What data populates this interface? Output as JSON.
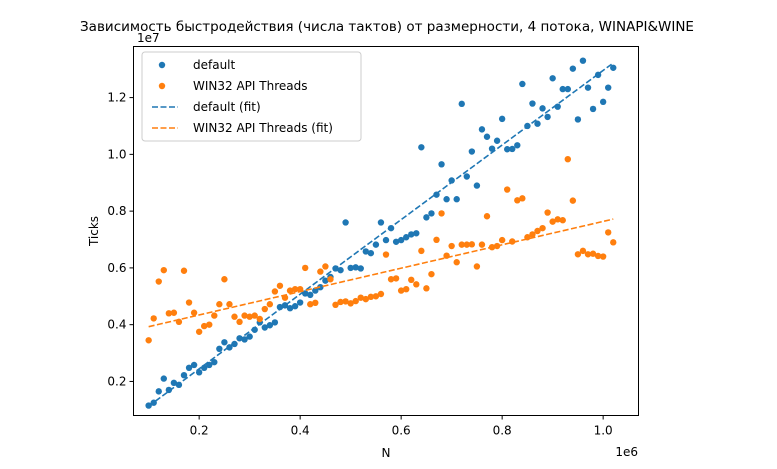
{
  "chart_data": {
    "type": "scatter",
    "title": "Зависимость быстродействия (числа тактов) от размерности, 4 потока, WINAPI&WINE",
    "xlabel": "N",
    "ylabel": "Ticks",
    "x_offset_label": "1e6",
    "y_offset_label": "1e7",
    "xlim": [
      70000,
      1070000
    ],
    "ylim": [
      8000000,
      138000000
    ],
    "x_ticks": [
      {
        "value": 200000,
        "label": "0.2"
      },
      {
        "value": 400000,
        "label": "0.4"
      },
      {
        "value": 600000,
        "label": "0.6"
      },
      {
        "value": 800000,
        "label": "0.8"
      },
      {
        "value": 1000000,
        "label": "1.0"
      }
    ],
    "y_ticks": [
      {
        "value": 20000000,
        "label": "0.2"
      },
      {
        "value": 40000000,
        "label": "0.4"
      },
      {
        "value": 60000000,
        "label": "0.6"
      },
      {
        "value": 80000000,
        "label": "0.8"
      },
      {
        "value": 100000000,
        "label": "1.0"
      },
      {
        "value": 120000000,
        "label": "1.2"
      }
    ],
    "grid": false,
    "legend_position": "top-left",
    "series": [
      {
        "name": "default",
        "kind": "scatter",
        "color": "#1f77b4",
        "points": [
          [
            100000,
            11500000
          ],
          [
            110000,
            12500000
          ],
          [
            120000,
            16500000
          ],
          [
            130000,
            21000000
          ],
          [
            140000,
            17000000
          ],
          [
            150000,
            19500000
          ],
          [
            160000,
            18800000
          ],
          [
            170000,
            22200000
          ],
          [
            180000,
            24800000
          ],
          [
            190000,
            25800000
          ],
          [
            200000,
            23200000
          ],
          [
            210000,
            24800000
          ],
          [
            220000,
            25800000
          ],
          [
            230000,
            26800000
          ],
          [
            240000,
            31500000
          ],
          [
            250000,
            33800000
          ],
          [
            260000,
            32000000
          ],
          [
            270000,
            33200000
          ],
          [
            280000,
            35200000
          ],
          [
            290000,
            34800000
          ],
          [
            300000,
            35800000
          ],
          [
            310000,
            38200000
          ],
          [
            320000,
            40800000
          ],
          [
            330000,
            39000000
          ],
          [
            340000,
            39800000
          ],
          [
            350000,
            40800000
          ],
          [
            360000,
            46200000
          ],
          [
            370000,
            46800000
          ],
          [
            380000,
            45800000
          ],
          [
            390000,
            46500000
          ],
          [
            400000,
            47800000
          ],
          [
            410000,
            51000000
          ],
          [
            420000,
            50500000
          ],
          [
            430000,
            52000000
          ],
          [
            440000,
            53200000
          ],
          [
            450000,
            55500000
          ],
          [
            460000,
            56800000
          ],
          [
            470000,
            59800000
          ],
          [
            480000,
            59200000
          ],
          [
            490000,
            76000000
          ],
          [
            500000,
            60000000
          ],
          [
            510000,
            60200000
          ],
          [
            520000,
            59800000
          ],
          [
            530000,
            65800000
          ],
          [
            540000,
            65200000
          ],
          [
            550000,
            68200000
          ],
          [
            560000,
            76000000
          ],
          [
            570000,
            69800000
          ],
          [
            580000,
            74000000
          ],
          [
            590000,
            69200000
          ],
          [
            600000,
            69800000
          ],
          [
            610000,
            70800000
          ],
          [
            620000,
            71800000
          ],
          [
            630000,
            72200000
          ],
          [
            640000,
            102500000
          ],
          [
            650000,
            77800000
          ],
          [
            660000,
            79200000
          ],
          [
            670000,
            85800000
          ],
          [
            680000,
            96500000
          ],
          [
            690000,
            84200000
          ],
          [
            700000,
            90800000
          ],
          [
            710000,
            84200000
          ],
          [
            720000,
            117800000
          ],
          [
            730000,
            92200000
          ],
          [
            740000,
            101000000
          ],
          [
            750000,
            89000000
          ],
          [
            760000,
            108800000
          ],
          [
            770000,
            106200000
          ],
          [
            780000,
            102000000
          ],
          [
            790000,
            104800000
          ],
          [
            800000,
            112500000
          ],
          [
            810000,
            101800000
          ],
          [
            820000,
            101900000
          ],
          [
            830000,
            103200000
          ],
          [
            840000,
            124800000
          ],
          [
            850000,
            110000000
          ],
          [
            860000,
            117900000
          ],
          [
            870000,
            110800000
          ],
          [
            880000,
            116200000
          ],
          [
            890000,
            113200000
          ],
          [
            900000,
            126800000
          ],
          [
            910000,
            116800000
          ],
          [
            920000,
            123000000
          ],
          [
            930000,
            123000000
          ],
          [
            940000,
            130200000
          ],
          [
            950000,
            112300000
          ],
          [
            960000,
            133000000
          ],
          [
            970000,
            123500000
          ],
          [
            980000,
            116000000
          ],
          [
            990000,
            128000000
          ],
          [
            1000000,
            118500000
          ],
          [
            1010000,
            123500000
          ],
          [
            1020000,
            130500000
          ]
        ]
      },
      {
        "name": "WIN32 API Threads",
        "kind": "scatter",
        "color": "#ff7f0e",
        "points": [
          [
            100000,
            34500000
          ],
          [
            110000,
            42200000
          ],
          [
            120000,
            55200000
          ],
          [
            130000,
            59200000
          ],
          [
            140000,
            44000000
          ],
          [
            150000,
            44200000
          ],
          [
            160000,
            41000000
          ],
          [
            170000,
            59000000
          ],
          [
            180000,
            47800000
          ],
          [
            190000,
            44200000
          ],
          [
            200000,
            37500000
          ],
          [
            210000,
            39500000
          ],
          [
            220000,
            40000000
          ],
          [
            230000,
            43200000
          ],
          [
            240000,
            47200000
          ],
          [
            250000,
            56000000
          ],
          [
            260000,
            47200000
          ],
          [
            270000,
            42800000
          ],
          [
            280000,
            41000000
          ],
          [
            290000,
            43200000
          ],
          [
            300000,
            42800000
          ],
          [
            310000,
            43200000
          ],
          [
            320000,
            42000000
          ],
          [
            330000,
            45500000
          ],
          [
            340000,
            47200000
          ],
          [
            350000,
            51700000
          ],
          [
            360000,
            53700000
          ],
          [
            370000,
            49500000
          ],
          [
            380000,
            52000000
          ],
          [
            390000,
            52500000
          ],
          [
            400000,
            52500000
          ],
          [
            410000,
            60000000
          ],
          [
            420000,
            47200000
          ],
          [
            430000,
            47700000
          ],
          [
            440000,
            58700000
          ],
          [
            450000,
            60500000
          ],
          [
            460000,
            56000000
          ],
          [
            470000,
            47000000
          ],
          [
            480000,
            48000000
          ],
          [
            490000,
            48200000
          ],
          [
            500000,
            47500000
          ],
          [
            510000,
            48300000
          ],
          [
            520000,
            49500000
          ],
          [
            530000,
            49000000
          ],
          [
            540000,
            49800000
          ],
          [
            550000,
            50000000
          ],
          [
            560000,
            50800000
          ],
          [
            570000,
            64700000
          ],
          [
            580000,
            56000000
          ],
          [
            590000,
            56300000
          ],
          [
            600000,
            52000000
          ],
          [
            610000,
            52500000
          ],
          [
            620000,
            55800000
          ],
          [
            630000,
            54200000
          ],
          [
            640000,
            66000000
          ],
          [
            650000,
            52800000
          ],
          [
            660000,
            57800000
          ],
          [
            670000,
            69900000
          ],
          [
            680000,
            79200000
          ],
          [
            690000,
            64300000
          ],
          [
            700000,
            67700000
          ],
          [
            710000,
            62000000
          ],
          [
            720000,
            68200000
          ],
          [
            730000,
            68200000
          ],
          [
            740000,
            68300000
          ],
          [
            750000,
            60500000
          ],
          [
            760000,
            68200000
          ],
          [
            770000,
            78200000
          ],
          [
            780000,
            67300000
          ],
          [
            790000,
            67700000
          ],
          [
            800000,
            69800000
          ],
          [
            810000,
            87600000
          ],
          [
            820000,
            69300000
          ],
          [
            830000,
            83800000
          ],
          [
            840000,
            84500000
          ],
          [
            850000,
            70800000
          ],
          [
            860000,
            71800000
          ],
          [
            870000,
            73000000
          ],
          [
            880000,
            74000000
          ],
          [
            890000,
            79500000
          ],
          [
            900000,
            76300000
          ],
          [
            910000,
            77100000
          ],
          [
            920000,
            76800000
          ],
          [
            930000,
            98300000
          ],
          [
            940000,
            83700000
          ],
          [
            950000,
            64800000
          ],
          [
            960000,
            66000000
          ],
          [
            970000,
            64800000
          ],
          [
            980000,
            65000000
          ],
          [
            990000,
            64200000
          ],
          [
            1000000,
            64000000
          ],
          [
            1010000,
            72500000
          ],
          [
            1020000,
            69000000
          ]
        ]
      },
      {
        "name": "default (fit)",
        "kind": "line",
        "dashed": true,
        "color": "#1f77b4",
        "points": [
          [
            100000,
            11300000
          ],
          [
            1020000,
            132200000
          ]
        ]
      },
      {
        "name": "WIN32 API Threads (fit)",
        "kind": "line",
        "dashed": true,
        "color": "#ff7f0e",
        "points": [
          [
            100000,
            39300000
          ],
          [
            1020000,
            77200000
          ]
        ]
      }
    ]
  }
}
